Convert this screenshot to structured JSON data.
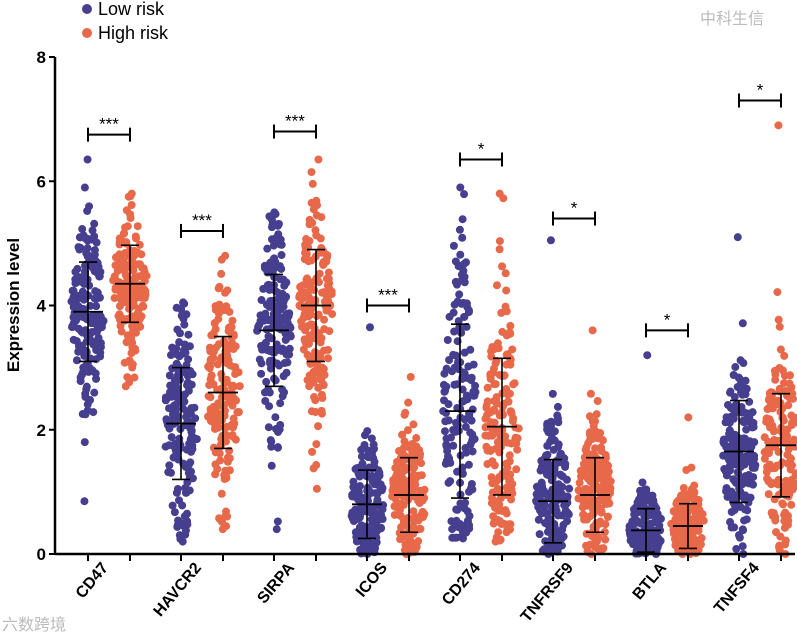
{
  "chart_data": {
    "type": "scatter",
    "subtype": "dot plot with mean ± SD",
    "title": "",
    "xlabel": "",
    "ylabel": "Expression level",
    "ylim": [
      0,
      8
    ],
    "yticks": [
      "0",
      "2",
      "4",
      "6",
      "8"
    ],
    "legend": {
      "position": "top-left",
      "entries": [
        {
          "name": "Low risk",
          "color": "#463e8e"
        },
        {
          "name": "High risk",
          "color": "#e8694a"
        }
      ]
    },
    "categories": [
      "CD47",
      "HAVCR2",
      "SIRPA",
      "ICOS",
      "CD274",
      "TNFRSF9",
      "BTLA",
      "TNFSF4"
    ],
    "series": [
      {
        "name": "Low risk",
        "color": "#463e8e",
        "mean": [
          3.9,
          2.1,
          3.6,
          0.8,
          2.3,
          0.85,
          0.38,
          1.65
        ],
        "sd": [
          0.8,
          0.9,
          0.9,
          0.55,
          1.4,
          0.67,
          0.35,
          0.82
        ],
        "min": [
          0.85,
          0.2,
          0.4,
          0.0,
          0.25,
          0.0,
          0.0,
          0.0
        ],
        "max": [
          6.35,
          4.05,
          5.5,
          3.65,
          5.9,
          5.05,
          3.2,
          5.1
        ]
      },
      {
        "name": "High risk",
        "color": "#e8694a",
        "mean": [
          4.35,
          2.6,
          4.0,
          0.95,
          2.05,
          0.95,
          0.45,
          1.75
        ],
        "sd": [
          0.62,
          0.9,
          0.9,
          0.6,
          1.1,
          0.6,
          0.36,
          0.83
        ],
        "min": [
          2.7,
          0.4,
          1.05,
          0.0,
          0.2,
          0.0,
          0.0,
          0.0
        ],
        "max": [
          5.8,
          4.8,
          6.35,
          2.85,
          5.8,
          3.6,
          2.2,
          6.9
        ]
      }
    ],
    "significance": [
      {
        "category": "CD47",
        "label": "***",
        "y": 6.75
      },
      {
        "category": "HAVCR2",
        "label": "***",
        "y": 5.2
      },
      {
        "category": "SIRPA",
        "label": "***",
        "y": 6.8
      },
      {
        "category": "ICOS",
        "label": "***",
        "y": 4.0
      },
      {
        "category": "CD274",
        "label": "*",
        "y": 6.35
      },
      {
        "category": "TNFRSF9",
        "label": "*",
        "y": 5.4
      },
      {
        "category": "BTLA",
        "label": "*",
        "y": 3.6
      },
      {
        "category": "TNFSF4",
        "label": "*",
        "y": 7.3
      }
    ]
  },
  "watermarks": [
    "六数跨境",
    "中科生信"
  ]
}
